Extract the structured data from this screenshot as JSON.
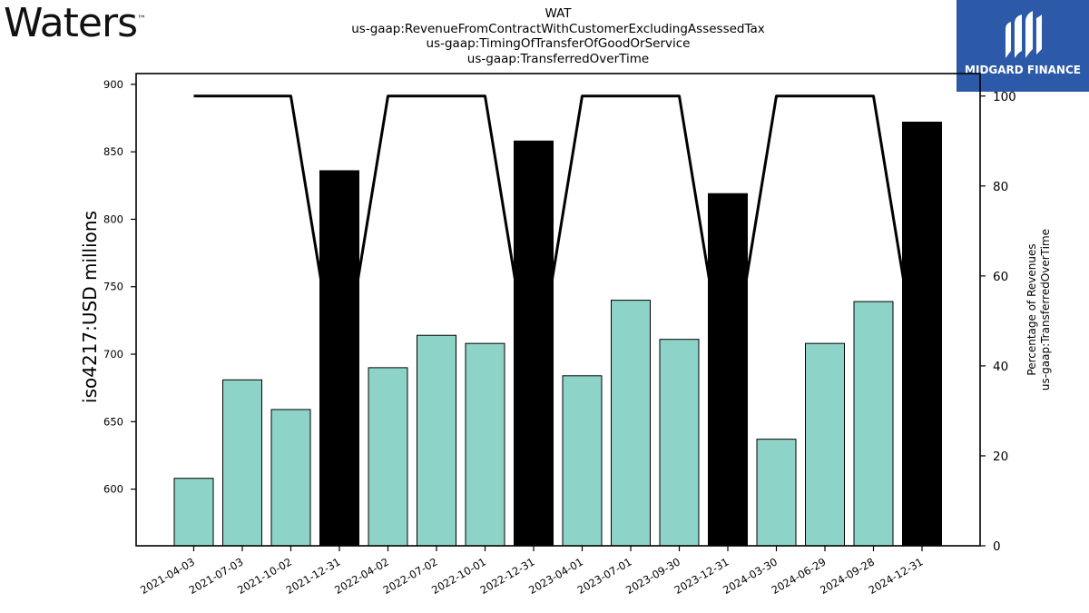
{
  "brand": {
    "left_logo": "Waters",
    "left_logo_tm": "™",
    "right_logo": "MIDGARD FINANCE"
  },
  "header": {
    "title_lines": [
      "WAT",
      "us-gaap:RevenueFromContractWithCustomerExcludingAssessedTax",
      "us-gaap:TimingOfTransferOfGoodOrService",
      "us-gaap:TransferredOverTime"
    ]
  },
  "colors": {
    "bar_quarter": "#8dd3c7",
    "bar_year_end": "#000000",
    "line": "#000000",
    "logo_bg": "#2c5aa8"
  },
  "chart_data": {
    "type": "bar",
    "categories": [
      "2021-04-03",
      "2021-07-03",
      "2021-10-02",
      "2021-12-31",
      "2022-04-02",
      "2022-07-02",
      "2022-10-01",
      "2022-12-31",
      "2023-04-01",
      "2023-07-01",
      "2023-09-30",
      "2023-12-31",
      "2024-03-30",
      "2024-06-29",
      "2024-09-28",
      "2024-12-31"
    ],
    "series": [
      {
        "axis": "left",
        "type": "bar",
        "values": [
          608,
          681,
          659,
          836,
          690,
          714,
          708,
          858,
          684,
          740,
          711,
          819,
          637,
          708,
          739,
          872
        ]
      },
      {
        "axis": "right",
        "type": "line",
        "values": [
          100,
          100,
          100,
          34,
          100,
          100,
          100,
          34,
          100,
          100,
          100,
          34,
          100,
          100,
          100,
          34
        ]
      }
    ],
    "year_end_bars": [
      3,
      7,
      11,
      15
    ],
    "ylabel_left": "iso4217:USD  millions",
    "ylabel_right_lines": [
      "Percentage of Revenues",
      "us-gaap:TransferredOverTime"
    ],
    "ylim_left": [
      558,
      908
    ],
    "yticks_left": [
      600,
      650,
      700,
      750,
      800,
      850,
      900
    ],
    "ylim_right": [
      0,
      105
    ],
    "yticks_right": [
      0,
      20,
      40,
      60,
      80,
      100
    ],
    "grid": false
  }
}
